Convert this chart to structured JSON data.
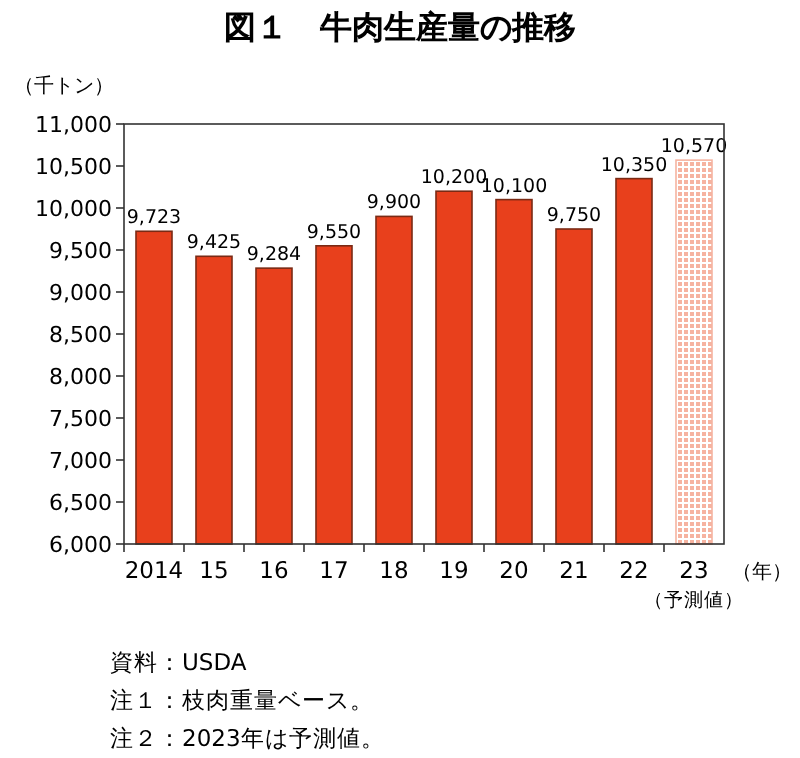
{
  "chart_data": {
    "type": "bar",
    "title": "図１　牛肉生産量の推移",
    "ylabel": "（千トン）",
    "xlabel": "（年）",
    "categories": [
      "2014",
      "15",
      "16",
      "17",
      "18",
      "19",
      "20",
      "21",
      "22",
      "23"
    ],
    "values": [
      9723,
      9425,
      9284,
      9550,
      9900,
      10200,
      10100,
      9750,
      10350,
      10570
    ],
    "colors": [
      "#e8401c",
      "#e8401c",
      "#e8401c",
      "#e8401c",
      "#e8401c",
      "#e8401c",
      "#e8401c",
      "#e8401c",
      "#e8401c",
      "#f6b3a0"
    ],
    "value_labels": [
      "9,723",
      "9,425",
      "9,284",
      "9,550",
      "9,900",
      "10,200",
      "10,100",
      "9,750",
      "10,350",
      "10,570"
    ],
    "ylim": [
      6000,
      11000
    ],
    "yticks": [
      {
        "value": 6000,
        "label": "6,000"
      },
      {
        "value": 6500,
        "label": "6,500"
      },
      {
        "value": 7000,
        "label": "7,000"
      },
      {
        "value": 7500,
        "label": "7,500"
      },
      {
        "value": 8000,
        "label": "8,000"
      },
      {
        "value": 8500,
        "label": "8,500"
      },
      {
        "value": 9000,
        "label": "9,000"
      },
      {
        "value": 9500,
        "label": "9,500"
      },
      {
        "value": 10000,
        "label": "10,000"
      },
      {
        "value": 10500,
        "label": "10,500"
      },
      {
        "value": 11000,
        "label": "11,000"
      }
    ],
    "grid": false,
    "annotations": [
      "（予測値）",
      "資料：USDA",
      "注１：枝肉重量ベース。",
      "注２：2023年は予測値。"
    ]
  }
}
